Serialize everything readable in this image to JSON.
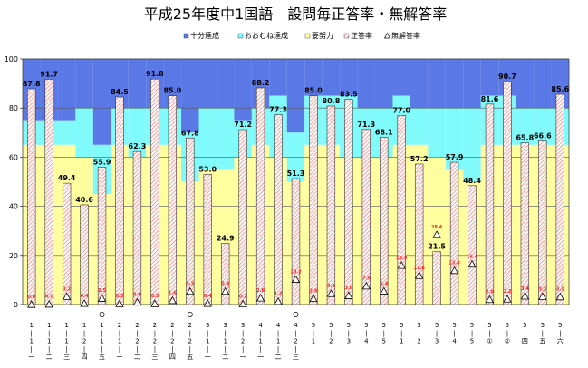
{
  "chart_data": {
    "type": "bar",
    "title": "平成25年度中1国語　設問毎正答率・無解答率",
    "legend": {
      "position": "top-right",
      "entries": [
        {
          "label": "十分達成",
          "color": "#5a78e6",
          "marker": "box"
        },
        {
          "label": "おおむね達成",
          "color": "#80fafa",
          "marker": "box"
        },
        {
          "label": "要努力",
          "color": "#ffffa0",
          "marker": "box"
        },
        {
          "label": "正答率",
          "color": "#ffffff",
          "marker": "hatch"
        },
        {
          "label": "無解答率",
          "color": "#ffffff",
          "marker": "triangle"
        }
      ]
    },
    "colors": {
      "top": "#5a78e6",
      "mid": "#80fafa",
      "low": "#ffffa0",
      "hatch": "#ff7070",
      "grid": "#888888"
    },
    "ylim": [
      0,
      100
    ],
    "yticks": [
      0,
      20,
      40,
      60,
      80,
      100
    ],
    "grid": true,
    "categories": [
      {
        "id": "1-1-1",
        "lines": [
          "1",
          "|",
          "1",
          "|",
          "一"
        ],
        "circle": false
      },
      {
        "id": "1-1-2",
        "lines": [
          "1",
          "|",
          "1",
          "|",
          "二"
        ],
        "circle": false
      },
      {
        "id": "1-1-3",
        "lines": [
          "1",
          "|",
          "1",
          "|",
          "三"
        ],
        "circle": false
      },
      {
        "id": "1-2-4",
        "lines": [
          "1",
          "|",
          "2",
          "|",
          "四"
        ],
        "circle": false
      },
      {
        "id": "1-2-5",
        "lines": [
          "1",
          "|",
          "1",
          "|",
          "五"
        ],
        "circle": true
      },
      {
        "id": "2-1-1",
        "lines": [
          "2",
          "|",
          "1",
          "|",
          "一"
        ],
        "circle": false
      },
      {
        "id": "2-1-2",
        "lines": [
          "2",
          "|",
          "2",
          "|",
          "二"
        ],
        "circle": false
      },
      {
        "id": "2-2-3",
        "lines": [
          "2",
          "|",
          "2",
          "|",
          "三"
        ],
        "circle": false
      },
      {
        "id": "2-2-4",
        "lines": [
          "2",
          "|",
          "2",
          "|",
          "四"
        ],
        "circle": false
      },
      {
        "id": "2-2-5",
        "lines": [
          "2",
          "|",
          "2",
          "|",
          "五"
        ],
        "circle": true
      },
      {
        "id": "3-1-1",
        "lines": [
          "3",
          "|",
          "1",
          "|",
          "一"
        ],
        "circle": false
      },
      {
        "id": "3-1-2",
        "lines": [
          "3",
          "|",
          "1",
          "|",
          "二"
        ],
        "circle": false
      },
      {
        "id": "3-2-1",
        "lines": [
          "3",
          "|",
          "2",
          "|",
          "一"
        ],
        "circle": false
      },
      {
        "id": "4-1-1",
        "lines": [
          "4",
          "|",
          "1",
          "|",
          "一"
        ],
        "circle": false
      },
      {
        "id": "4-1-2",
        "lines": [
          "4",
          "|",
          "1",
          "|",
          "二"
        ],
        "circle": false
      },
      {
        "id": "4-2-3",
        "lines": [
          "4",
          "|",
          "2",
          "|",
          "三"
        ],
        "circle": true
      },
      {
        "id": "5-1",
        "lines": [
          "5",
          "|",
          "1"
        ],
        "circle": false
      },
      {
        "id": "5-2",
        "lines": [
          "5",
          "|",
          "2"
        ],
        "circle": false
      },
      {
        "id": "5-3",
        "lines": [
          "5",
          "|",
          "3"
        ],
        "circle": false
      },
      {
        "id": "5-4",
        "lines": [
          "5",
          "|",
          "4"
        ],
        "circle": false
      },
      {
        "id": "5-5",
        "lines": [
          "5",
          "|",
          "5"
        ],
        "circle": false
      },
      {
        "id": "5-1b",
        "lines": [
          "5",
          "|",
          "1"
        ],
        "circle": false
      },
      {
        "id": "5-2b",
        "lines": [
          "5",
          "|",
          "2"
        ],
        "circle": false
      },
      {
        "id": "5-3b",
        "lines": [
          "5",
          "|",
          "3"
        ],
        "circle": false
      },
      {
        "id": "5-4b",
        "lines": [
          "5",
          "|",
          "4"
        ],
        "circle": false
      },
      {
        "id": "5-5b",
        "lines": [
          "5",
          "|",
          "5"
        ],
        "circle": false
      },
      {
        "id": "5-c1",
        "lines": [
          "5",
          "|",
          "①"
        ],
        "circle": false
      },
      {
        "id": "5-c2",
        "lines": [
          "5",
          "|",
          "②"
        ],
        "circle": false
      },
      {
        "id": "5-4c",
        "lines": [
          "5",
          "|",
          "四"
        ],
        "circle": false
      },
      {
        "id": "5-5c",
        "lines": [
          "5",
          "|",
          "五"
        ],
        "circle": false
      },
      {
        "id": "5-6c",
        "lines": [
          "5",
          "|",
          "六"
        ],
        "circle": false
      }
    ],
    "background": [
      {
        "low": 65,
        "mid": 75
      },
      {
        "low": 65,
        "mid": 75
      },
      {
        "low": 65,
        "mid": 75
      },
      {
        "low": 60,
        "mid": 80
      },
      {
        "low": 45,
        "mid": 65
      },
      {
        "low": 65,
        "mid": 80
      },
      {
        "low": 60,
        "mid": 80
      },
      {
        "low": 65,
        "mid": 80
      },
      {
        "low": 65,
        "mid": 80
      },
      {
        "low": 50,
        "mid": 70
      },
      {
        "low": 55,
        "mid": 80
      },
      {
        "low": 55,
        "mid": 80
      },
      {
        "low": 60,
        "mid": 75
      },
      {
        "low": 65,
        "mid": 80
      },
      {
        "low": 60,
        "mid": 85
      },
      {
        "low": 50,
        "mid": 70
      },
      {
        "low": 65,
        "mid": 85
      },
      {
        "low": 65,
        "mid": 85
      },
      {
        "low": 60,
        "mid": 85
      },
      {
        "low": 60,
        "mid": 80
      },
      {
        "low": 60,
        "mid": 80
      },
      {
        "low": 65,
        "mid": 85
      },
      {
        "low": 65,
        "mid": 80
      },
      {
        "low": 60,
        "mid": 80
      },
      {
        "low": 55,
        "mid": 80
      },
      {
        "low": 50,
        "mid": 80
      },
      {
        "low": 65,
        "mid": 85
      },
      {
        "low": 65,
        "mid": 85
      },
      {
        "low": 65,
        "mid": 80
      },
      {
        "low": 65,
        "mid": 80
      },
      {
        "low": 65,
        "mid": 80
      }
    ],
    "series": [
      {
        "name": "正答率",
        "labels": [
          "87.8",
          "91.7",
          "49.4",
          "40.6",
          "55.9",
          "84.5",
          "62.3",
          "91.8",
          "85.0",
          "67.8",
          "53.0",
          "24.9",
          "71.2",
          "88.2",
          "77.3",
          "51.3",
          "85.0",
          "80.8",
          "83.5",
          "71.3",
          "68.1",
          "77.0",
          "57.2",
          "21.5",
          "57.9",
          "48.4",
          "81.6",
          "90.7",
          "65.8",
          "66.6",
          "85.6"
        ],
        "values": [
          87.8,
          91.7,
          49.4,
          40.6,
          55.9,
          84.5,
          62.3,
          91.8,
          85.0,
          67.8,
          53.0,
          24.9,
          71.2,
          88.2,
          77.3,
          51.3,
          85.0,
          80.8,
          83.5,
          71.3,
          68.1,
          77.0,
          57.2,
          21.5,
          57.9,
          48.4,
          81.6,
          90.7,
          65.8,
          66.6,
          85.6
        ]
      },
      {
        "name": "無解答率",
        "labels": [
          "0.0",
          "0.1",
          "3.2",
          "0.4",
          "2.5",
          "0.3",
          "0.9",
          "0.3",
          "1.6",
          "5.3",
          "0.4",
          "5.3",
          "0.2",
          "2.6",
          "1.2",
          "10.2",
          "2.4",
          "4.4",
          "3.6",
          "7.5",
          "5.4",
          "15.9",
          "11.8",
          "28.4",
          "13.8",
          "16.4",
          "2.0",
          "2.2",
          "3.4",
          "3.2",
          "3.1"
        ],
        "values": [
          0.0,
          0.1,
          3.2,
          0.4,
          2.5,
          0.3,
          0.9,
          0.3,
          1.6,
          5.3,
          0.4,
          5.3,
          0.2,
          2.6,
          1.2,
          10.2,
          2.4,
          4.4,
          3.6,
          7.5,
          5.4,
          15.9,
          11.8,
          28.4,
          13.8,
          16.4,
          2.0,
          2.2,
          3.4,
          3.2,
          3.1
        ]
      }
    ]
  }
}
